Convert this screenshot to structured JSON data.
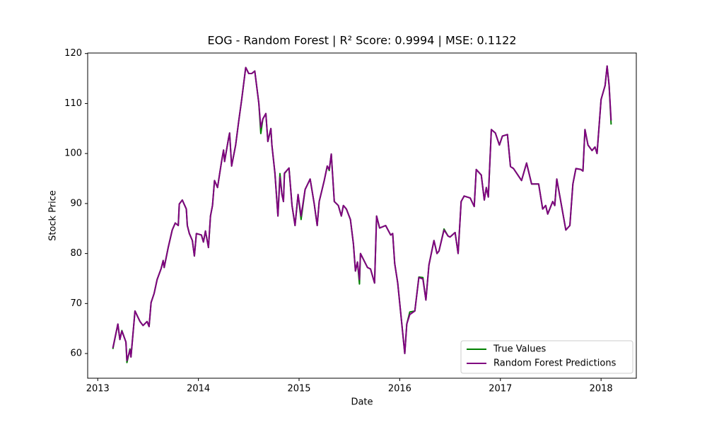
{
  "chart_data": {
    "type": "line",
    "title": "EOG - Random Forest | R² Score: 0.9994 | MSE: 0.1122",
    "x_label": "Date",
    "y_label": "Stock Price",
    "x": [
      2013.15,
      2013.2,
      2013.22,
      2013.24,
      2013.28,
      2013.29,
      2013.32,
      2013.33,
      2013.37,
      2013.42,
      2013.45,
      2013.49,
      2013.51,
      2013.53,
      2013.56,
      2013.59,
      2013.63,
      2013.65,
      2013.66,
      2013.7,
      2013.74,
      2013.77,
      2013.8,
      2013.81,
      2013.84,
      2013.88,
      2013.89,
      2013.91,
      2013.94,
      2013.96,
      2013.98,
      2014.03,
      2014.05,
      2014.07,
      2014.1,
      2014.12,
      2014.14,
      2014.16,
      2014.19,
      2014.23,
      2014.25,
      2014.26,
      2014.3,
      2014.31,
      2014.33,
      2014.37,
      2014.4,
      2014.43,
      2014.47,
      2014.5,
      2014.53,
      2014.56,
      2014.6,
      2014.62,
      2014.64,
      2014.67,
      2014.69,
      2014.72,
      2014.73,
      2014.76,
      2014.79,
      2014.81,
      2014.83,
      2014.845,
      2014.855,
      2014.9,
      2014.93,
      2014.96,
      2014.99,
      2015.02,
      2015.06,
      2015.11,
      2015.15,
      2015.18,
      2015.2,
      2015.25,
      2015.28,
      2015.3,
      2015.32,
      2015.35,
      2015.39,
      2015.42,
      2015.44,
      2015.47,
      2015.51,
      2015.54,
      2015.56,
      2015.58,
      2015.6,
      2015.61,
      2015.68,
      2015.71,
      2015.75,
      2015.77,
      2015.8,
      2015.86,
      2015.91,
      2015.93,
      2015.95,
      2015.98,
      2016.05,
      2016.07,
      2016.1,
      2016.15,
      2016.19,
      2016.23,
      2016.26,
      2016.29,
      2016.34,
      2016.37,
      2016.39,
      2016.44,
      2016.48,
      2016.5,
      2016.55,
      2016.58,
      2016.61,
      2016.64,
      2016.7,
      2016.74,
      2016.76,
      2016.81,
      2016.84,
      2016.86,
      2016.88,
      2016.91,
      2016.95,
      2016.99,
      2017.02,
      2017.07,
      2017.1,
      2017.13,
      2017.21,
      2017.26,
      2017.31,
      2017.38,
      2017.42,
      2017.45,
      2017.47,
      2017.52,
      2017.54,
      2017.56,
      2017.65,
      2017.69,
      2017.72,
      2017.75,
      2017.8,
      2017.82,
      2017.84,
      2017.87,
      2017.91,
      2017.94,
      2017.96,
      2018.0,
      2018.04,
      2018.06,
      2018.08,
      2018.1
    ],
    "series": [
      {
        "name": "True Values",
        "color": "#008000",
        "values": [
          60.9,
          65.9,
          62.8,
          64.6,
          62.3,
          58.2,
          60.9,
          59.3,
          68.5,
          66.4,
          65.6,
          66.4,
          65.4,
          70.2,
          72.0,
          74.8,
          77.0,
          78.6,
          77.2,
          81.2,
          84.7,
          86.1,
          85.6,
          89.9,
          90.7,
          88.9,
          85.6,
          84.0,
          82.6,
          79.5,
          84.0,
          83.7,
          82.3,
          84.5,
          81.2,
          87.5,
          89.6,
          94.6,
          93.2,
          98.4,
          100.7,
          98.4,
          103.1,
          104.1,
          97.5,
          101.7,
          106.4,
          110.8,
          117.2,
          116.0,
          116.0,
          116.5,
          110.1,
          104.0,
          106.9,
          108.0,
          102.4,
          105.0,
          101.7,
          96.1,
          87.5,
          96.0,
          91.8,
          90.4,
          96.0,
          97.1,
          89.6,
          85.6,
          91.8,
          86.8,
          92.8,
          94.9,
          90.0,
          85.6,
          90.4,
          94.6,
          97.5,
          96.6,
          99.9,
          90.4,
          89.6,
          87.5,
          89.6,
          88.9,
          86.8,
          81.9,
          76.5,
          78.3,
          73.9,
          80.0,
          77.2,
          76.9,
          74.1,
          87.5,
          85.1,
          85.6,
          83.7,
          84.0,
          78.0,
          74.1,
          60.0,
          65.9,
          68.3,
          68.5,
          75.3,
          75.2,
          70.7,
          77.7,
          82.6,
          80.0,
          80.5,
          84.9,
          83.5,
          83.3,
          84.2,
          80.0,
          90.4,
          91.5,
          91.1,
          89.4,
          96.8,
          95.7,
          90.7,
          93.2,
          91.3,
          104.8,
          104.1,
          101.7,
          103.5,
          103.8,
          97.4,
          97.0,
          94.6,
          98.1,
          93.9,
          93.9,
          88.9,
          89.6,
          87.9,
          90.4,
          89.6,
          94.9,
          84.7,
          85.6,
          93.9,
          97.0,
          96.8,
          96.5,
          104.8,
          101.7,
          100.6,
          101.3,
          100.0,
          110.8,
          113.6,
          117.5,
          113.6,
          105.8
        ]
      },
      {
        "name": "Random Forest Predictions",
        "color": "#800080",
        "values": [
          61.1,
          65.9,
          62.8,
          64.5,
          62.3,
          58.6,
          60.7,
          59.3,
          68.5,
          66.4,
          65.6,
          66.4,
          65.4,
          70.2,
          72.0,
          74.8,
          77.0,
          78.6,
          77.2,
          81.2,
          84.7,
          86.1,
          85.6,
          89.9,
          90.7,
          88.9,
          85.6,
          84.0,
          82.6,
          79.5,
          84.0,
          83.7,
          82.3,
          84.5,
          81.2,
          87.5,
          89.6,
          94.6,
          93.2,
          98.4,
          100.7,
          98.4,
          103.1,
          104.1,
          97.5,
          101.7,
          106.4,
          110.8,
          117.2,
          116.0,
          116.0,
          116.5,
          110.1,
          105.2,
          106.9,
          108.0,
          102.4,
          105.0,
          101.7,
          96.1,
          87.5,
          95.3,
          91.8,
          90.4,
          96.1,
          97.1,
          89.6,
          85.6,
          91.8,
          87.5,
          92.8,
          94.9,
          90.0,
          85.6,
          90.4,
          94.6,
          97.5,
          96.8,
          99.9,
          90.4,
          89.6,
          87.5,
          89.6,
          88.9,
          86.8,
          81.9,
          76.5,
          78.3,
          74.8,
          80.0,
          77.2,
          76.9,
          74.1,
          87.5,
          85.1,
          85.6,
          83.7,
          84.0,
          78.0,
          74.1,
          60.0,
          65.9,
          67.8,
          68.5,
          75.2,
          74.9,
          70.7,
          77.7,
          82.6,
          80.0,
          80.5,
          84.7,
          83.5,
          83.3,
          84.2,
          80.0,
          90.4,
          91.5,
          91.1,
          89.4,
          96.8,
          95.7,
          90.7,
          93.2,
          91.3,
          104.8,
          104.1,
          101.7,
          103.5,
          103.8,
          97.4,
          97.0,
          94.6,
          98.1,
          93.9,
          93.9,
          88.9,
          89.6,
          87.9,
          90.4,
          89.6,
          94.9,
          84.7,
          85.6,
          93.9,
          97.0,
          96.8,
          96.5,
          104.8,
          101.7,
          100.6,
          101.3,
          100.0,
          110.8,
          113.6,
          117.5,
          113.6,
          106.6
        ]
      }
    ],
    "xlim": [
      2012.9,
      2018.35
    ],
    "xticks": [
      2013,
      2014,
      2015,
      2016,
      2017,
      2018
    ],
    "ylim": [
      55.06,
      120.1
    ],
    "yticks": [
      60,
      70,
      80,
      90,
      100,
      110,
      120
    ],
    "legend": "lower right"
  }
}
